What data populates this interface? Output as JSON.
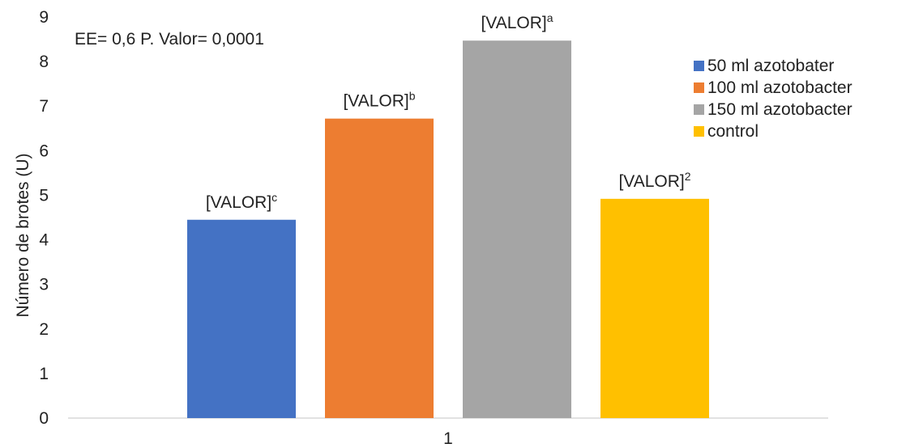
{
  "chart_data": {
    "type": "bar",
    "categories": [
      "1"
    ],
    "series": [
      {
        "name": "50 ml azotobater",
        "value": 4.45,
        "label": "[VALOR]",
        "sup": "c",
        "color": "#4472C4"
      },
      {
        "name": "100 ml azotobacter",
        "value": 6.72,
        "label": "[VALOR]",
        "sup": "b",
        "color": "#ED7D31"
      },
      {
        "name": "150 ml azotobacter",
        "value": 8.47,
        "label": "[VALOR]",
        "sup": "a",
        "color": "#A5A5A5"
      },
      {
        "name": "control",
        "value": 4.92,
        "label": "[VALOR]",
        "sup": "2",
        "color": "#FFC000"
      }
    ],
    "title": "",
    "xlabel": "",
    "ylabel": "Número de brotes (U)",
    "ylim": [
      0,
      9
    ],
    "yticks": [
      "0",
      "1",
      "2",
      "3",
      "4",
      "5",
      "6",
      "7",
      "8",
      "9"
    ],
    "grid": false,
    "legend_position": "right",
    "annotation": "EE= 0,6 P. Valor= 0,0001"
  }
}
